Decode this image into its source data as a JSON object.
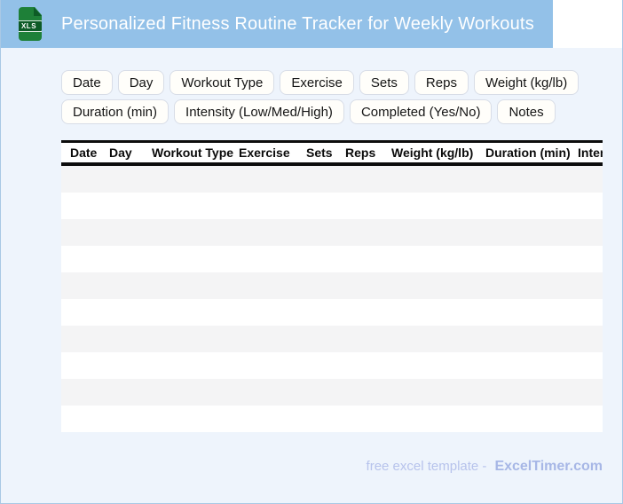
{
  "header": {
    "title": "Personalized Fitness Routine Tracker for Weekly Workouts",
    "file_icon": "xls-file-icon",
    "file_icon_label": "XLS"
  },
  "chips": {
    "row1": [
      "Date",
      "Day",
      "Workout Type",
      "Exercise",
      "Sets",
      "Reps",
      "Weight (kg/lb)"
    ],
    "row2": [
      "Duration (min)",
      "Intensity (Low/Med/High)",
      "Completed (Yes/No)",
      "Notes"
    ]
  },
  "table": {
    "columns": [
      "Date",
      "Day",
      "Workout Type",
      "Exercise",
      "Sets",
      "Reps",
      "Weight (kg/lb)",
      "Duration (min)",
      "Intensity (Low/Med/High)"
    ],
    "rows": [
      "",
      "",
      "",
      "",
      "",
      "",
      "",
      "",
      "",
      ""
    ]
  },
  "footer": {
    "prefix": "free excel template -",
    "brand": "ExcelTimer.com"
  },
  "colors": {
    "header_bar": "#93c1e8",
    "page_background": "#eef4fc",
    "icon_green": "#1e8038",
    "icon_dark_green": "#0d5b26",
    "table_alt_row": "#f4f4f5",
    "table_border": "#0c0c0c",
    "chip_background": "#fffefa",
    "chip_border": "#d8dde7",
    "footer_text": "#b7c3ec",
    "footer_brand": "#a7b7e6"
  }
}
